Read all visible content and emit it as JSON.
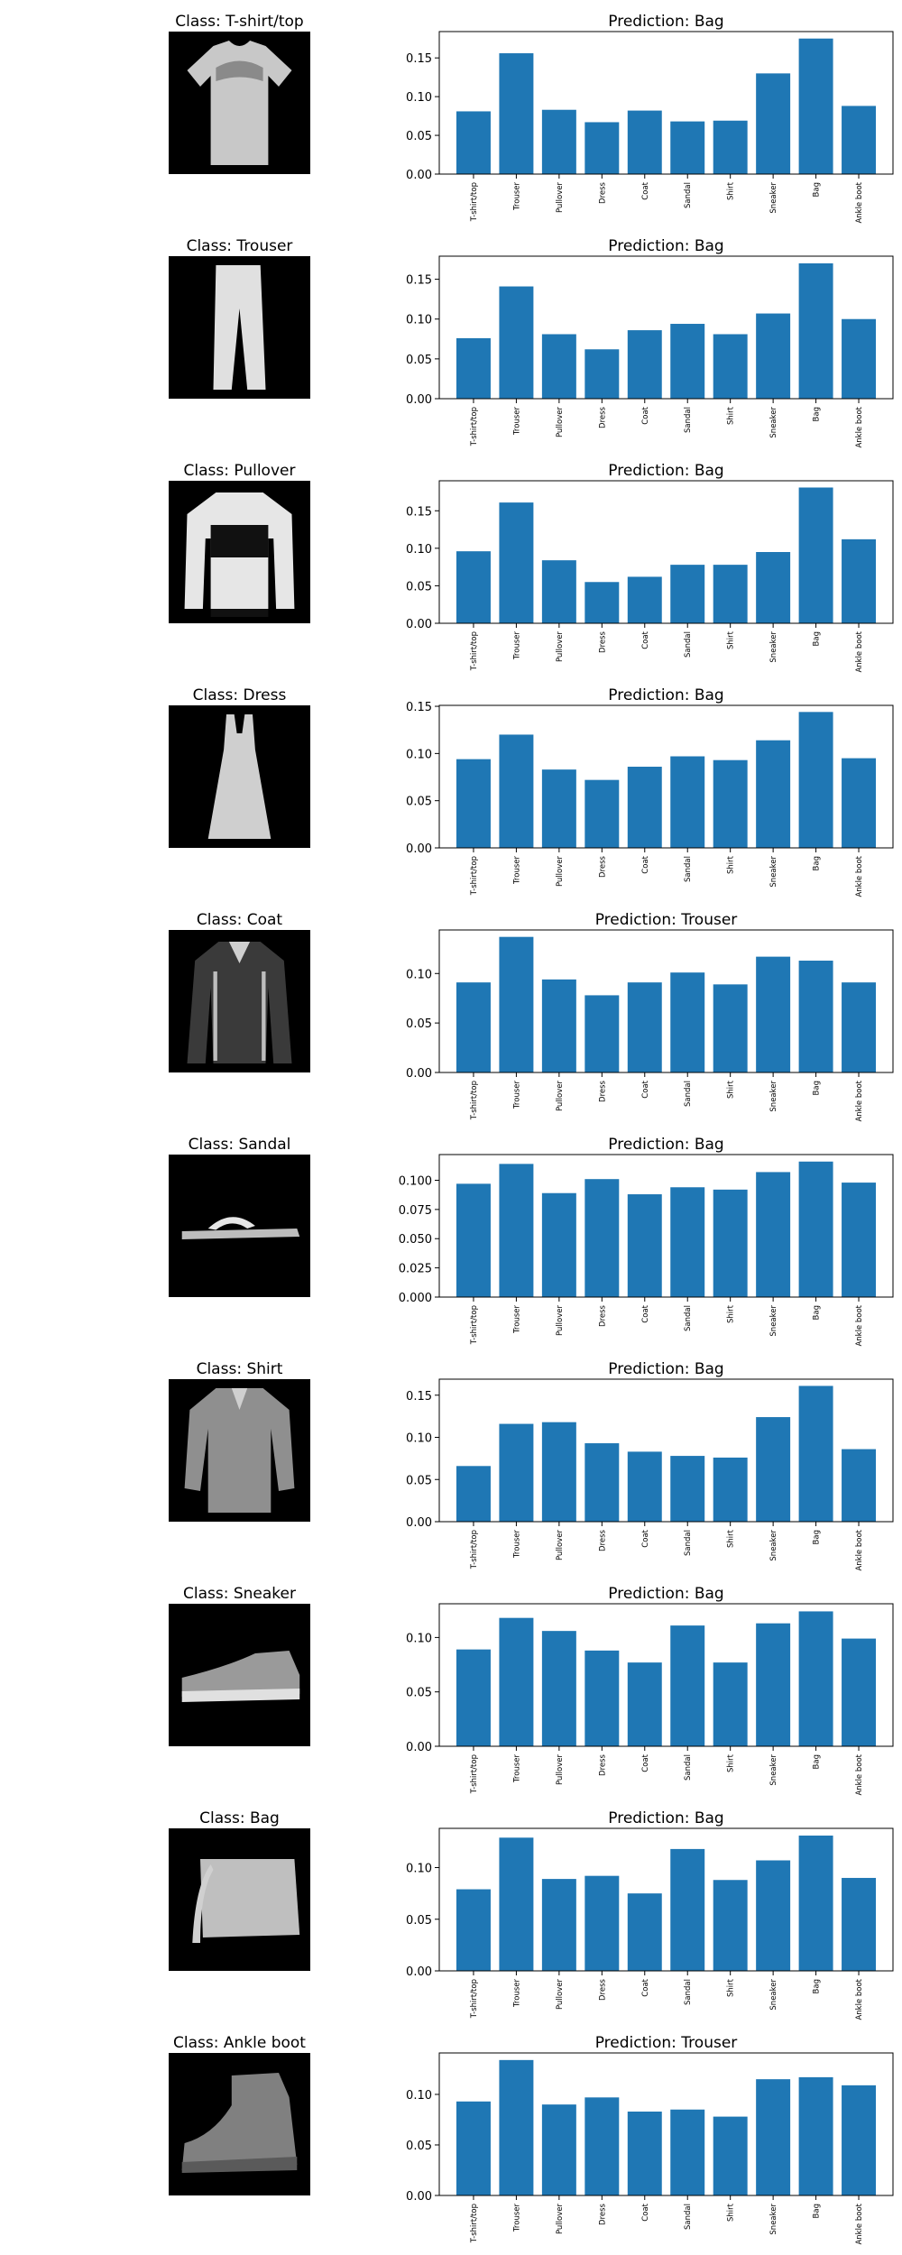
{
  "figure": {
    "categories": [
      "T-shirt/top",
      "Trouser",
      "Pullover",
      "Dress",
      "Coat",
      "Sandal",
      "Shirt",
      "Sneaker",
      "Bag",
      "Ankle boot"
    ],
    "bar_color": "#1f77b4",
    "image_background": "#000000",
    "rows": [
      {
        "class_title": "Class: T-shirt/top",
        "image_icon": "t-shirt-thumbnail",
        "pred_title": "Prediction: Bag",
        "values": [
          0.081,
          0.156,
          0.083,
          0.067,
          0.082,
          0.068,
          0.069,
          0.13,
          0.175,
          0.088
        ],
        "ylim": [
          0,
          0.184
        ],
        "yticks": [
          0.0,
          0.05,
          0.1,
          0.15
        ],
        "ytick_labels": [
          "0.00",
          "0.05",
          "0.10",
          "0.15"
        ]
      },
      {
        "class_title": "Class: Trouser",
        "image_icon": "trouser-thumbnail",
        "pred_title": "Prediction: Bag",
        "values": [
          0.076,
          0.141,
          0.081,
          0.062,
          0.086,
          0.094,
          0.081,
          0.107,
          0.17,
          0.1
        ],
        "ylim": [
          0,
          0.179
        ],
        "yticks": [
          0.0,
          0.05,
          0.1,
          0.15
        ],
        "ytick_labels": [
          "0.00",
          "0.05",
          "0.10",
          "0.15"
        ]
      },
      {
        "class_title": "Class: Pullover",
        "image_icon": "pullover-thumbnail",
        "pred_title": "Prediction: Bag",
        "values": [
          0.096,
          0.161,
          0.084,
          0.055,
          0.062,
          0.078,
          0.078,
          0.095,
          0.181,
          0.112
        ],
        "ylim": [
          0,
          0.19
        ],
        "yticks": [
          0.0,
          0.05,
          0.1,
          0.15
        ],
        "ytick_labels": [
          "0.00",
          "0.05",
          "0.10",
          "0.15"
        ]
      },
      {
        "class_title": "Class: Dress",
        "image_icon": "dress-thumbnail",
        "pred_title": "Prediction: Bag",
        "values": [
          0.094,
          0.12,
          0.083,
          0.072,
          0.086,
          0.097,
          0.093,
          0.114,
          0.144,
          0.095
        ],
        "ylim": [
          0,
          0.151
        ],
        "yticks": [
          0.0,
          0.05,
          0.1,
          0.15
        ],
        "ytick_labels": [
          "0.00",
          "0.05",
          "0.10",
          "0.15"
        ]
      },
      {
        "class_title": "Class: Coat",
        "image_icon": "coat-thumbnail",
        "pred_title": "Prediction: Trouser",
        "values": [
          0.091,
          0.137,
          0.094,
          0.078,
          0.091,
          0.101,
          0.089,
          0.117,
          0.113,
          0.091
        ],
        "ylim": [
          0,
          0.144
        ],
        "yticks": [
          0.0,
          0.05,
          0.1
        ],
        "ytick_labels": [
          "0.00",
          "0.05",
          "0.10"
        ]
      },
      {
        "class_title": "Class: Sandal",
        "image_icon": "sandal-thumbnail",
        "pred_title": "Prediction: Bag",
        "values": [
          0.097,
          0.114,
          0.089,
          0.101,
          0.088,
          0.094,
          0.092,
          0.107,
          0.116,
          0.098
        ],
        "ylim": [
          0,
          0.122
        ],
        "yticks": [
          0.0,
          0.025,
          0.05,
          0.075,
          0.1
        ],
        "ytick_labels": [
          "0.000",
          "0.025",
          "0.050",
          "0.075",
          "0.100"
        ]
      },
      {
        "class_title": "Class: Shirt",
        "image_icon": "shirt-thumbnail",
        "pred_title": "Prediction: Bag",
        "values": [
          0.066,
          0.116,
          0.118,
          0.093,
          0.083,
          0.078,
          0.076,
          0.124,
          0.161,
          0.086
        ],
        "ylim": [
          0,
          0.169
        ],
        "yticks": [
          0.0,
          0.05,
          0.1,
          0.15
        ],
        "ytick_labels": [
          "0.00",
          "0.05",
          "0.10",
          "0.15"
        ]
      },
      {
        "class_title": "Class: Sneaker",
        "image_icon": "sneaker-thumbnail",
        "pred_title": "Prediction: Bag",
        "values": [
          0.089,
          0.118,
          0.106,
          0.088,
          0.077,
          0.111,
          0.077,
          0.113,
          0.124,
          0.099
        ],
        "ylim": [
          0,
          0.131
        ],
        "yticks": [
          0.0,
          0.05,
          0.1
        ],
        "ytick_labels": [
          "0.00",
          "0.05",
          "0.10"
        ]
      },
      {
        "class_title": "Class: Bag",
        "image_icon": "bag-thumbnail",
        "pred_title": "Prediction: Bag",
        "values": [
          0.079,
          0.129,
          0.089,
          0.092,
          0.075,
          0.118,
          0.088,
          0.107,
          0.131,
          0.09
        ],
        "ylim": [
          0,
          0.138
        ],
        "yticks": [
          0.0,
          0.05,
          0.1
        ],
        "ytick_labels": [
          "0.00",
          "0.05",
          "0.10"
        ]
      },
      {
        "class_title": "Class: Ankle boot",
        "image_icon": "ankle-boot-thumbnail",
        "pred_title": "Prediction: Trouser",
        "values": [
          0.093,
          0.134,
          0.09,
          0.097,
          0.083,
          0.085,
          0.078,
          0.115,
          0.117,
          0.109
        ],
        "ylim": [
          0,
          0.141
        ],
        "yticks": [
          0.0,
          0.05,
          0.1
        ],
        "ytick_labels": [
          "0.00",
          "0.05",
          "0.10"
        ]
      }
    ]
  },
  "chart_data": [
    {
      "type": "bar",
      "title": "Prediction: Bag",
      "categories": [
        "T-shirt/top",
        "Trouser",
        "Pullover",
        "Dress",
        "Coat",
        "Sandal",
        "Shirt",
        "Sneaker",
        "Bag",
        "Ankle boot"
      ],
      "values": [
        0.081,
        0.156,
        0.083,
        0.067,
        0.082,
        0.068,
        0.069,
        0.13,
        0.175,
        0.088
      ],
      "ylim": [
        0,
        0.184
      ],
      "grid": false
    },
    {
      "type": "bar",
      "title": "Prediction: Bag",
      "categories": [
        "T-shirt/top",
        "Trouser",
        "Pullover",
        "Dress",
        "Coat",
        "Sandal",
        "Shirt",
        "Sneaker",
        "Bag",
        "Ankle boot"
      ],
      "values": [
        0.076,
        0.141,
        0.081,
        0.062,
        0.086,
        0.094,
        0.081,
        0.107,
        0.17,
        0.1
      ],
      "ylim": [
        0,
        0.179
      ],
      "grid": false
    },
    {
      "type": "bar",
      "title": "Prediction: Bag",
      "categories": [
        "T-shirt/top",
        "Trouser",
        "Pullover",
        "Dress",
        "Coat",
        "Sandal",
        "Shirt",
        "Sneaker",
        "Bag",
        "Ankle boot"
      ],
      "values": [
        0.096,
        0.161,
        0.084,
        0.055,
        0.062,
        0.078,
        0.078,
        0.095,
        0.181,
        0.112
      ],
      "ylim": [
        0,
        0.19
      ],
      "grid": false
    },
    {
      "type": "bar",
      "title": "Prediction: Bag",
      "categories": [
        "T-shirt/top",
        "Trouser",
        "Pullover",
        "Dress",
        "Coat",
        "Sandal",
        "Shirt",
        "Sneaker",
        "Bag",
        "Ankle boot"
      ],
      "values": [
        0.094,
        0.12,
        0.083,
        0.072,
        0.086,
        0.097,
        0.093,
        0.114,
        0.144,
        0.095
      ],
      "ylim": [
        0,
        0.151
      ],
      "grid": false
    },
    {
      "type": "bar",
      "title": "Prediction: Trouser",
      "categories": [
        "T-shirt/top",
        "Trouser",
        "Pullover",
        "Dress",
        "Coat",
        "Sandal",
        "Shirt",
        "Sneaker",
        "Bag",
        "Ankle boot"
      ],
      "values": [
        0.091,
        0.137,
        0.094,
        0.078,
        0.091,
        0.101,
        0.089,
        0.117,
        0.113,
        0.091
      ],
      "ylim": [
        0,
        0.144
      ],
      "grid": false
    },
    {
      "type": "bar",
      "title": "Prediction: Bag",
      "categories": [
        "T-shirt/top",
        "Trouser",
        "Pullover",
        "Dress",
        "Coat",
        "Sandal",
        "Shirt",
        "Sneaker",
        "Bag",
        "Ankle boot"
      ],
      "values": [
        0.097,
        0.114,
        0.089,
        0.101,
        0.088,
        0.094,
        0.092,
        0.107,
        0.116,
        0.098
      ],
      "ylim": [
        0,
        0.122
      ],
      "grid": false
    },
    {
      "type": "bar",
      "title": "Prediction: Bag",
      "categories": [
        "T-shirt/top",
        "Trouser",
        "Pullover",
        "Dress",
        "Coat",
        "Sandal",
        "Shirt",
        "Sneaker",
        "Bag",
        "Ankle boot"
      ],
      "values": [
        0.066,
        0.116,
        0.118,
        0.093,
        0.083,
        0.078,
        0.076,
        0.124,
        0.161,
        0.086
      ],
      "ylim": [
        0,
        0.169
      ],
      "grid": false
    },
    {
      "type": "bar",
      "title": "Prediction: Bag",
      "categories": [
        "T-shirt/top",
        "Trouser",
        "Pullover",
        "Dress",
        "Coat",
        "Sandal",
        "Shirt",
        "Sneaker",
        "Bag",
        "Ankle boot"
      ],
      "values": [
        0.089,
        0.118,
        0.106,
        0.088,
        0.077,
        0.111,
        0.077,
        0.113,
        0.124,
        0.099
      ],
      "ylim": [
        0,
        0.131
      ],
      "grid": false
    },
    {
      "type": "bar",
      "title": "Prediction: Bag",
      "categories": [
        "T-shirt/top",
        "Trouser",
        "Pullover",
        "Dress",
        "Coat",
        "Sandal",
        "Shirt",
        "Sneaker",
        "Bag",
        "Ankle boot"
      ],
      "values": [
        0.079,
        0.129,
        0.089,
        0.092,
        0.075,
        0.118,
        0.088,
        0.107,
        0.131,
        0.09
      ],
      "ylim": [
        0,
        0.138
      ],
      "grid": false
    },
    {
      "type": "bar",
      "title": "Prediction: Trouser",
      "categories": [
        "T-shirt/top",
        "Trouser",
        "Pullover",
        "Dress",
        "Coat",
        "Sandal",
        "Shirt",
        "Sneaker",
        "Bag",
        "Ankle boot"
      ],
      "values": [
        0.093,
        0.134,
        0.09,
        0.097,
        0.083,
        0.085,
        0.078,
        0.115,
        0.117,
        0.109
      ],
      "ylim": [
        0,
        0.141
      ],
      "grid": false
    }
  ]
}
